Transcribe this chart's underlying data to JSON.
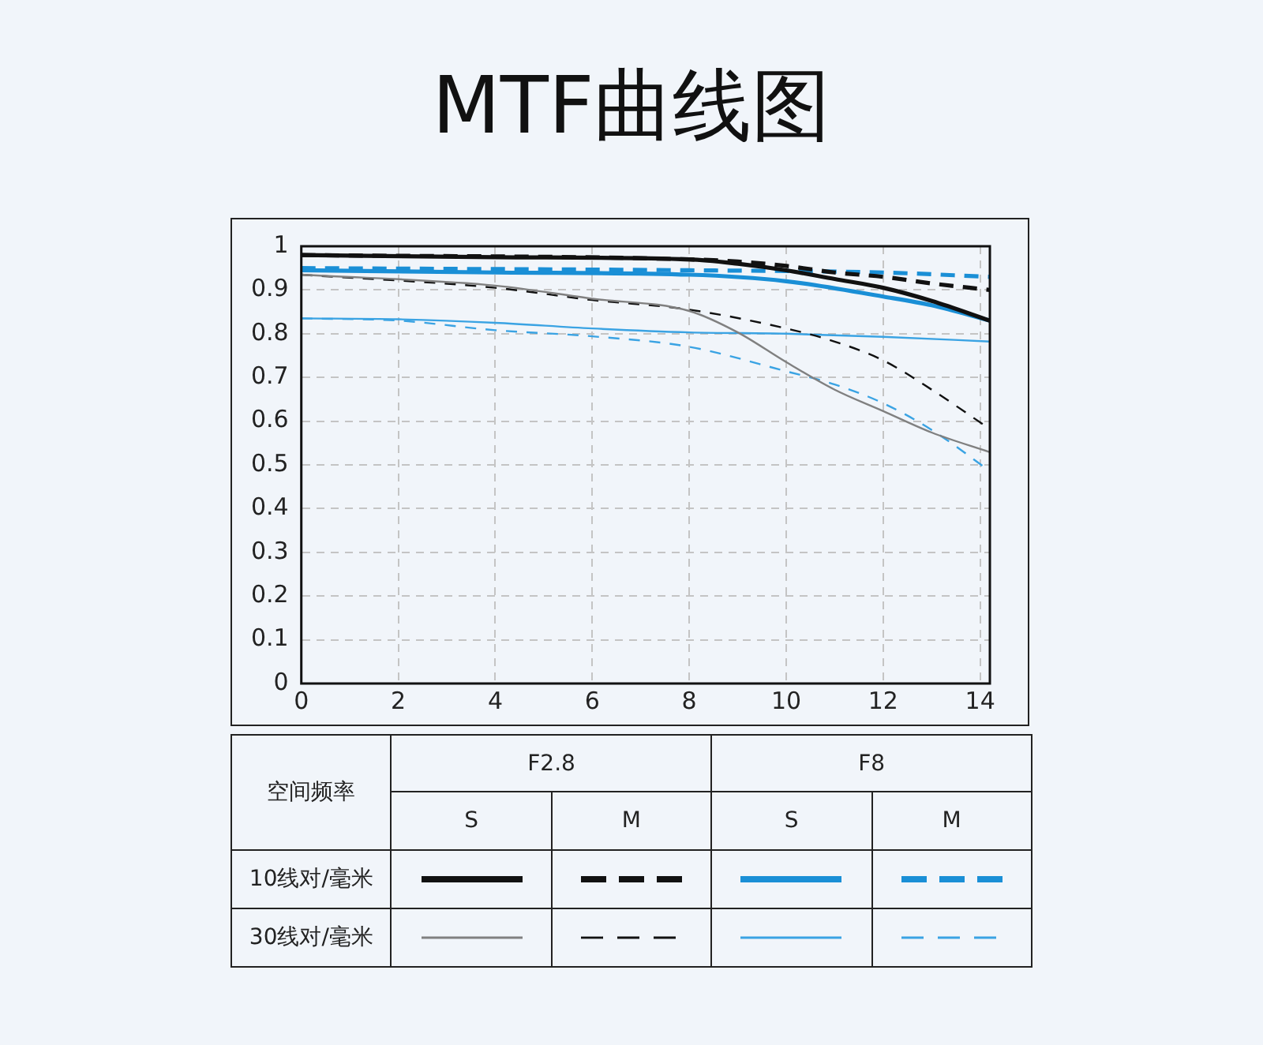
{
  "chart_data": {
    "type": "line",
    "title": "MTF曲线图",
    "legend_title": "空间频率",
    "annotations": [
      "F2.8",
      "F8",
      "S",
      "M",
      "S",
      "M",
      "10线对/毫米",
      "30线对/毫米"
    ],
    "xlim": [
      0,
      14.2
    ],
    "xticks": [
      0,
      2,
      4,
      6,
      8,
      10,
      12,
      14
    ],
    "ylim": [
      0,
      1
    ],
    "yticks": [
      0,
      0.1,
      0.2,
      0.3,
      0.4,
      0.5,
      0.6,
      0.7,
      0.8,
      0.9,
      1
    ],
    "grid": true,
    "marker": "none",
    "series": [
      {
        "color": "#111111",
        "line_style": "solid",
        "x": [
          0,
          4,
          8,
          9,
          10,
          11,
          12,
          13,
          14.2
        ],
        "values": [
          0.98,
          0.975,
          0.97,
          0.96,
          0.945,
          0.925,
          0.905,
          0.875,
          0.83
        ]
      },
      {
        "color": "#111111",
        "line_style": "dashed",
        "x": [
          0,
          8,
          9,
          10,
          11,
          12,
          13,
          14.2
        ],
        "values": [
          0.98,
          0.97,
          0.965,
          0.955,
          0.94,
          0.93,
          0.915,
          0.9
        ]
      },
      {
        "color": "#1a8fd6",
        "line_style": "solid",
        "x": [
          0,
          4,
          8,
          10,
          12,
          13,
          14.2
        ],
        "values": [
          0.945,
          0.94,
          0.935,
          0.92,
          0.885,
          0.865,
          0.83
        ]
      },
      {
        "color": "#1a8fd6",
        "line_style": "dashed",
        "x": [
          0,
          8,
          12,
          14.2
        ],
        "values": [
          0.95,
          0.945,
          0.94,
          0.93
        ]
      },
      {
        "color": "#808080",
        "line_style": "solid",
        "x": [
          0,
          4,
          6,
          8,
          9,
          10,
          11,
          12,
          13,
          14.2
        ],
        "values": [
          0.935,
          0.91,
          0.88,
          0.852,
          0.803,
          0.735,
          0.672,
          0.623,
          0.574,
          0.529
        ]
      },
      {
        "color": "#111111",
        "line_style": "dashed",
        "x": [
          0,
          4,
          6,
          8,
          10,
          11,
          12,
          13,
          14.2
        ],
        "values": [
          0.935,
          0.905,
          0.877,
          0.855,
          0.812,
          0.782,
          0.739,
          0.672,
          0.582
        ]
      },
      {
        "color": "#3aa3e3",
        "line_style": "solid",
        "x": [
          0,
          2,
          4,
          6,
          8,
          10,
          12,
          14.2
        ],
        "values": [
          0.835,
          0.833,
          0.825,
          0.812,
          0.803,
          0.8,
          0.793,
          0.782
        ]
      },
      {
        "color": "#3aa3e3",
        "line_style": "dashed",
        "x": [
          0,
          2,
          4,
          6,
          8,
          10,
          11,
          12,
          13,
          14.2
        ],
        "values": [
          0.835,
          0.83,
          0.808,
          0.794,
          0.77,
          0.714,
          0.684,
          0.641,
          0.58,
          0.486
        ]
      }
    ]
  }
}
